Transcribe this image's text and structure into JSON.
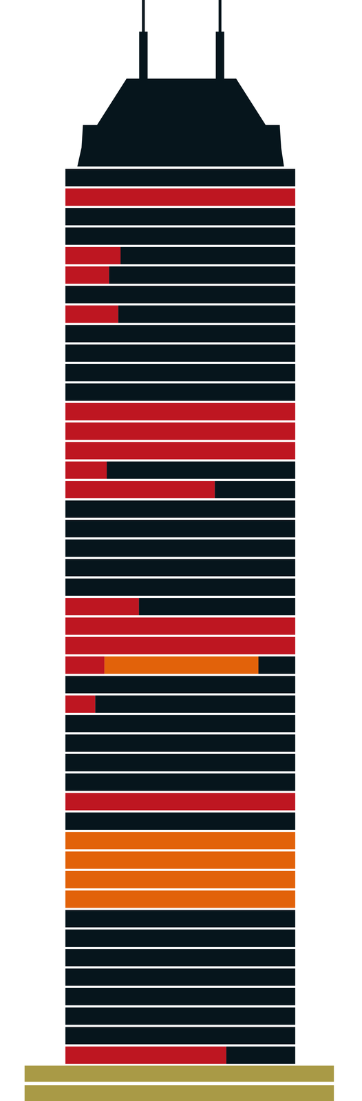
{
  "chart_data": {
    "type": "bar",
    "orientation": "horizontal",
    "stacked": true,
    "grid": false,
    "tick_labels": false,
    "categories": [
      null,
      null,
      null,
      null,
      null,
      null,
      null,
      null,
      null,
      null,
      null,
      null,
      null,
      null,
      null,
      null,
      null,
      null,
      null,
      null,
      null,
      null,
      null,
      null,
      null,
      null,
      null,
      null,
      null,
      null,
      null,
      null,
      null,
      null,
      null,
      null,
      null,
      null,
      null,
      null,
      null,
      null,
      null,
      null,
      null,
      null
    ],
    "xlim": [
      0,
      100
    ],
    "series": [
      {
        "color": "#be1621",
        "values": [
          0,
          100,
          0,
          0,
          24,
          19,
          0,
          23,
          0,
          0,
          0,
          0,
          100,
          100,
          100,
          18,
          65,
          0,
          0,
          0,
          0,
          0,
          32,
          100,
          100,
          17,
          0,
          13,
          0,
          0,
          0,
          0,
          100,
          0,
          0,
          0,
          0,
          0,
          0,
          0,
          0,
          0,
          0,
          0,
          0,
          70
        ]
      },
      {
        "color": "#e2620a",
        "values": [
          0,
          0,
          0,
          0,
          0,
          0,
          0,
          0,
          0,
          0,
          0,
          0,
          0,
          0,
          0,
          0,
          0,
          0,
          0,
          0,
          0,
          0,
          0,
          0,
          0,
          67,
          0,
          0,
          0,
          0,
          0,
          0,
          0,
          0,
          100,
          100,
          100,
          100,
          0,
          0,
          0,
          0,
          0,
          0,
          0,
          0
        ]
      },
      {
        "color": "#06151c",
        "values": [
          100,
          0,
          100,
          100,
          76,
          81,
          100,
          77,
          100,
          100,
          100,
          100,
          0,
          0,
          0,
          82,
          35,
          100,
          100,
          100,
          100,
          100,
          68,
          0,
          0,
          16,
          100,
          87,
          100,
          100,
          100,
          100,
          0,
          100,
          0,
          0,
          0,
          0,
          100,
          100,
          100,
          100,
          100,
          100,
          100,
          30
        ]
      }
    ]
  }
}
